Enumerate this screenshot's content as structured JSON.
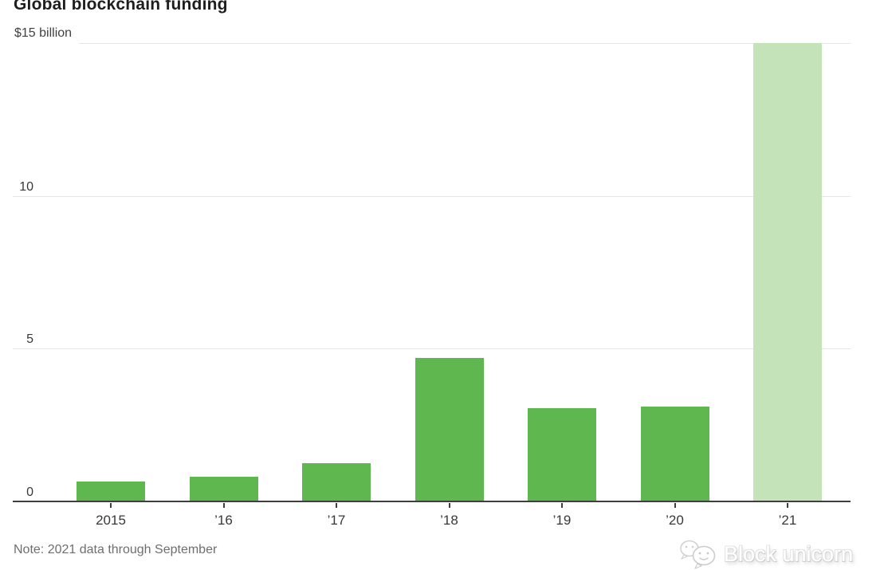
{
  "title": "Global blockchain funding",
  "note": "Note: 2021 data through September",
  "watermark": {
    "label": "Block unicorn",
    "icon": "chat-bubbles-icon"
  },
  "colors": {
    "bar": "#5fb84f",
    "bar_highlight": "#c5e3b8",
    "gridline": "#e5e5e5",
    "axis": "#3f3f3f",
    "label": "#383838",
    "title": "#1e1e1e",
    "note": "#6e6e6e"
  },
  "chart_data": {
    "type": "bar",
    "title": "Global blockchain funding",
    "categories": [
      "2015",
      "’16",
      "’17",
      "’18",
      "’19",
      "’20",
      "’21"
    ],
    "values": [
      0.65,
      0.8,
      1.25,
      4.7,
      3.05,
      3.1,
      15
    ],
    "highlighted_index": 6,
    "y_ticks": [
      {
        "value": 15,
        "label": "$15 billion"
      },
      {
        "value": 10,
        "label": "10"
      },
      {
        "value": 5,
        "label": "5"
      },
      {
        "value": 0,
        "label": "0"
      }
    ],
    "ylim": [
      0,
      15
    ],
    "grid": true,
    "note": "Note: 2021 data through September"
  }
}
